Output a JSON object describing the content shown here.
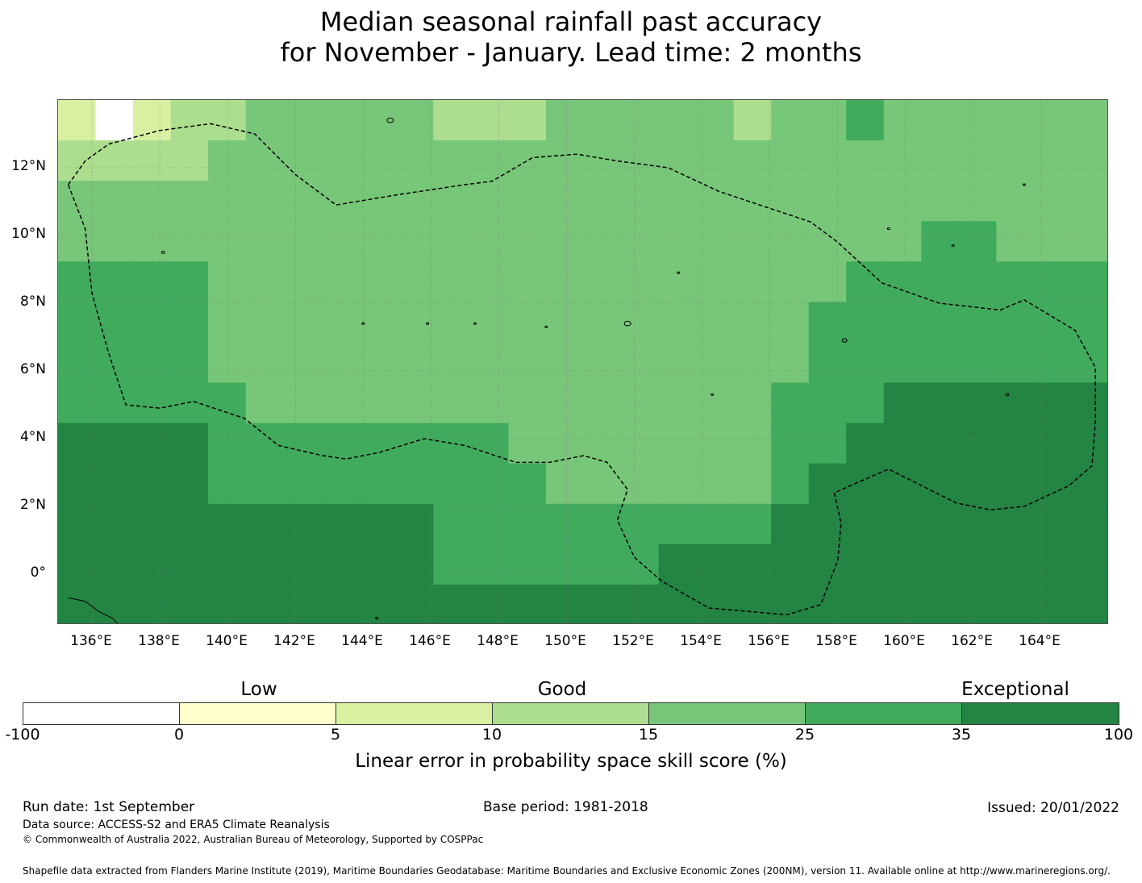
{
  "title_line1": "Median seasonal rainfall past accuracy",
  "title_line2": "for November - January. Lead time: 2 months",
  "map": {
    "lon_ticks": [
      "136°E",
      "138°E",
      "140°E",
      "142°E",
      "144°E",
      "146°E",
      "148°E",
      "150°E",
      "152°E",
      "154°E",
      "156°E",
      "158°E",
      "160°E",
      "162°E",
      "164°E"
    ],
    "lat_ticks": [
      "12°N",
      "10°N",
      "8°N",
      "6°N",
      "4°N",
      "2°N",
      "0°"
    ],
    "extent_lon": [
      135.0,
      166.0
    ],
    "extent_lat": [
      -1.5,
      14.0
    ],
    "palette": [
      "#ffffff",
      "#ffffcc",
      "#d9f0a3",
      "#addd8e",
      "#78c679",
      "#41ab5d",
      "#238443"
    ],
    "grid_rows": [
      "2023344444333444443445444444",
      "3333444444444444444444444444",
      "4444444444444444444444444444",
      "4444444444444444444444455444",
      "5555444444444444444445555555",
      "5555444444444444444455555555",
      "5555444444444444444455555555",
      "5555544444444444444555666666",
      "6666555555554444444556666666",
      "6666555555555444444566666666",
      "6666666666555555555666666666",
      "6666666666555555666666666666",
      "6666666666666666666666666666"
    ]
  },
  "colorbar": {
    "categories": [
      "Low",
      "Good",
      "Exceptional"
    ],
    "ticks": [
      "-100",
      "0",
      "5",
      "10",
      "15",
      "25",
      "35",
      "100"
    ],
    "colors": [
      "#ffffff",
      "#ffffcc",
      "#d9f0a3",
      "#addd8e",
      "#78c679",
      "#41ab5d",
      "#238443"
    ],
    "label": "Linear error in probability space skill score (%)"
  },
  "footer": {
    "run_date": "Run date: 1st September",
    "base_period": "Base period: 1981-2018",
    "issued": "Issued: 20/01/2022",
    "data_source": "Data source: ACCESS-S2 and ERA5 Climate Reanalysis",
    "copyright": "© Commonwealth of Australia 2022, Australian Bureau of Meteorology, Supported by COSPPac",
    "shapefile": "Shapefile data extracted from Flanders Marine Institute (2019), Maritime Boundaries Geodatabase: Maritime Boundaries and Exclusive Economic Zones (200NM), version 11. Available online at http://www.marineregions.org/."
  }
}
